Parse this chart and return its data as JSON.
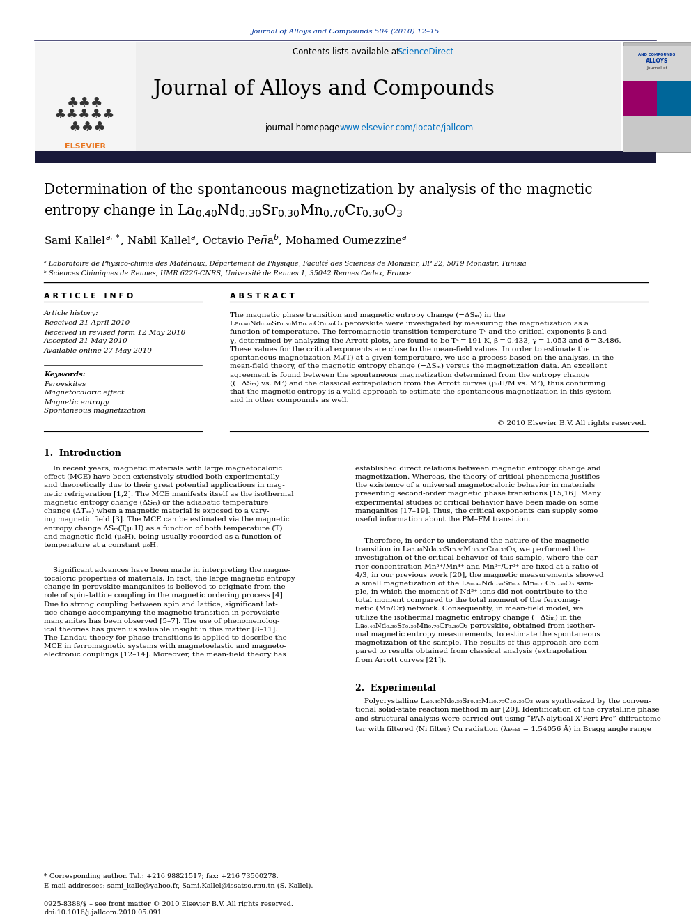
{
  "journal_ref": "Journal of Alloys and Compounds 504 (2010) 12–15",
  "contents_text": "Contents lists available at ",
  "sciencedirect": "ScienceDirect",
  "journal_name": "Journal of Alloys and Compounds",
  "journal_homepage_plain": "journal homepage: ",
  "journal_homepage_url": "www.elsevier.com/locate/jallcom",
  "article_info_title": "A R T I C L E   I N F O",
  "abstract_title": "A B S T R A C T",
  "article_history_label": "Article history:",
  "received": "Received 21 April 2010",
  "received_revised": "Received in revised form 12 May 2010",
  "accepted": "Accepted 21 May 2010",
  "available": "Available online 27 May 2010",
  "keywords_label": "Keywords:",
  "keyword1": "Perovskites",
  "keyword2": "Magnetocaloric effect",
  "keyword3": "Magnetic entropy",
  "keyword4": "Spontaneous magnetization",
  "copyright": "© 2010 Elsevier B.V. All rights reserved.",
  "section1_title": "1.  Introduction",
  "footnote_star": "* Corresponding author. Tel.: +216 98821517; fax: +216 73500278.",
  "footnote_email": "E-mail addresses: sami_kalle@yahoo.fr, Sami.Kallel@issatso.rnu.tn (S. Kallel).",
  "footer_issn": "0925-8388/$ – see front matter © 2010 Elsevier B.V. All rights reserved.",
  "footer_doi": "doi:10.1016/j.jallcom.2010.05.091",
  "bg_color": "#ffffff",
  "blue_color": "#0070c0",
  "navy_color": "#003399",
  "elsevier_orange": "#e87722",
  "text_color": "#000000",
  "cover_pink": "#990066",
  "cover_teal": "#006699"
}
